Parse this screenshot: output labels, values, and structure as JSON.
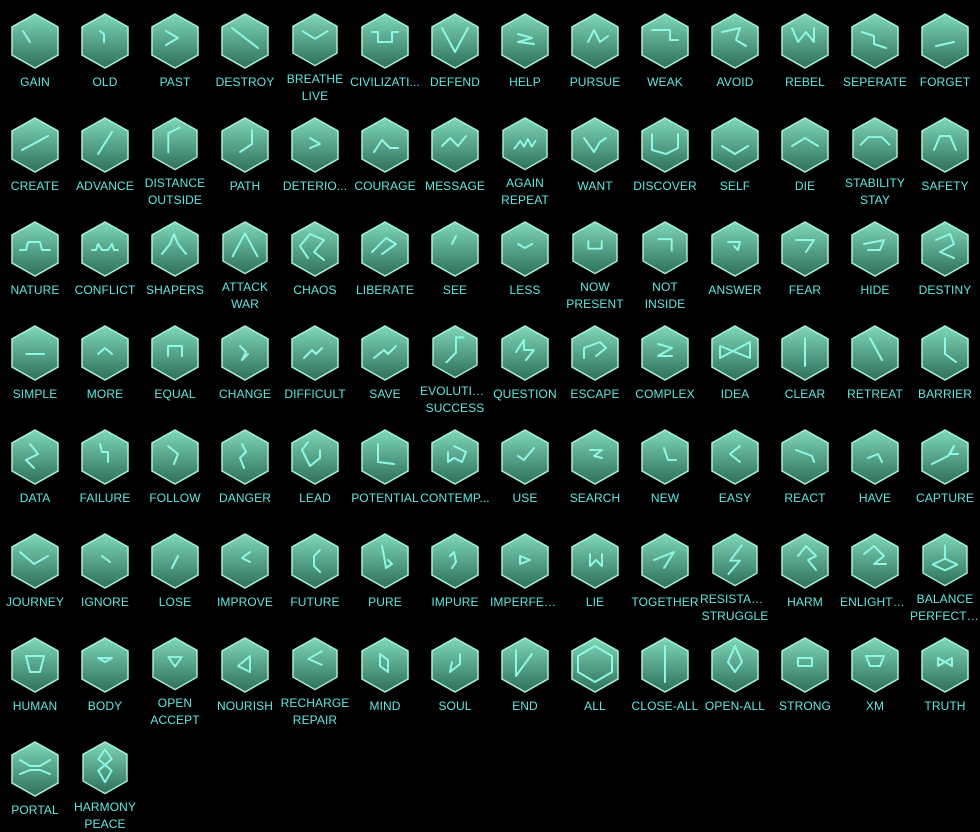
{
  "colors": {
    "background": "#000000",
    "hex_fill_top": "#7fd8b8",
    "hex_fill_bottom": "#2e6f5b",
    "hex_stroke": "#a8f2d8",
    "glyph": "#8ff7e6",
    "label": "#5fe8e3"
  },
  "glyphs": [
    {
      "lines": [
        "GAIN"
      ],
      "name": "gain"
    },
    {
      "lines": [
        "OLD"
      ],
      "name": "old"
    },
    {
      "lines": [
        "PAST"
      ],
      "name": "past"
    },
    {
      "lines": [
        "DESTROY"
      ],
      "name": "destroy"
    },
    {
      "lines": [
        "BREATHE",
        "LIVE"
      ],
      "name": "breathe-live"
    },
    {
      "lines": [
        "CIVILIZATI..."
      ],
      "name": "civilization"
    },
    {
      "lines": [
        "DEFEND"
      ],
      "name": "defend"
    },
    {
      "lines": [
        "HELP"
      ],
      "name": "help"
    },
    {
      "lines": [
        "PURSUE"
      ],
      "name": "pursue"
    },
    {
      "lines": [
        "WEAK"
      ],
      "name": "weak"
    },
    {
      "lines": [
        "AVOID"
      ],
      "name": "avoid"
    },
    {
      "lines": [
        "REBEL"
      ],
      "name": "rebel"
    },
    {
      "lines": [
        "SEPERATE"
      ],
      "name": "seperate"
    },
    {
      "lines": [
        "FORGET"
      ],
      "name": "forget"
    },
    {
      "lines": [
        "CREATE"
      ],
      "name": "create"
    },
    {
      "lines": [
        "ADVANCE"
      ],
      "name": "advance"
    },
    {
      "lines": [
        "DISTANCE",
        "OUTSIDE"
      ],
      "name": "distance-outside"
    },
    {
      "lines": [
        "PATH"
      ],
      "name": "path"
    },
    {
      "lines": [
        "DETERIO..."
      ],
      "name": "deteriorate"
    },
    {
      "lines": [
        "COURAGE"
      ],
      "name": "courage"
    },
    {
      "lines": [
        "MESSAGE"
      ],
      "name": "message"
    },
    {
      "lines": [
        "AGAIN",
        "REPEAT"
      ],
      "name": "again-repeat"
    },
    {
      "lines": [
        "WANT"
      ],
      "name": "want"
    },
    {
      "lines": [
        "DISCOVER"
      ],
      "name": "discover"
    },
    {
      "lines": [
        "SELF"
      ],
      "name": "self"
    },
    {
      "lines": [
        "DIE"
      ],
      "name": "die"
    },
    {
      "lines": [
        "STABILITY",
        "STAY"
      ],
      "name": "stability-stay"
    },
    {
      "lines": [
        "SAFETY"
      ],
      "name": "safety"
    },
    {
      "lines": [
        "NATURE"
      ],
      "name": "nature"
    },
    {
      "lines": [
        "CONFLICT"
      ],
      "name": "conflict"
    },
    {
      "lines": [
        "SHAPERS"
      ],
      "name": "shapers"
    },
    {
      "lines": [
        "ATTACK",
        "WAR"
      ],
      "name": "attack-war"
    },
    {
      "lines": [
        "CHAOS"
      ],
      "name": "chaos"
    },
    {
      "lines": [
        "LIBERATE"
      ],
      "name": "liberate"
    },
    {
      "lines": [
        "SEE"
      ],
      "name": "see"
    },
    {
      "lines": [
        "LESS"
      ],
      "name": "less"
    },
    {
      "lines": [
        "NOW",
        "PRESENT"
      ],
      "name": "now-present"
    },
    {
      "lines": [
        "NOT",
        "INSIDE"
      ],
      "name": "not-inside"
    },
    {
      "lines": [
        "ANSWER"
      ],
      "name": "answer"
    },
    {
      "lines": [
        "FEAR"
      ],
      "name": "fear"
    },
    {
      "lines": [
        "HIDE"
      ],
      "name": "hide"
    },
    {
      "lines": [
        "DESTINY"
      ],
      "name": "destiny"
    },
    {
      "lines": [
        "SIMPLE"
      ],
      "name": "simple"
    },
    {
      "lines": [
        "MORE"
      ],
      "name": "more"
    },
    {
      "lines": [
        "EQUAL"
      ],
      "name": "equal"
    },
    {
      "lines": [
        "CHANGE"
      ],
      "name": "change"
    },
    {
      "lines": [
        "DIFFICULT"
      ],
      "name": "difficult"
    },
    {
      "lines": [
        "SAVE"
      ],
      "name": "save"
    },
    {
      "lines": [
        "EVOLUTION",
        "SUCCESS"
      ],
      "name": "evolution-success"
    },
    {
      "lines": [
        "QUESTION"
      ],
      "name": "question"
    },
    {
      "lines": [
        "ESCAPE"
      ],
      "name": "escape"
    },
    {
      "lines": [
        "COMPLEX"
      ],
      "name": "complex"
    },
    {
      "lines": [
        "IDEA"
      ],
      "name": "idea"
    },
    {
      "lines": [
        "CLEAR"
      ],
      "name": "clear"
    },
    {
      "lines": [
        "RETREAT"
      ],
      "name": "retreat"
    },
    {
      "lines": [
        "BARRIER"
      ],
      "name": "barrier"
    },
    {
      "lines": [
        "DATA"
      ],
      "name": "data"
    },
    {
      "lines": [
        "FAILURE"
      ],
      "name": "failure"
    },
    {
      "lines": [
        "FOLLOW"
      ],
      "name": "follow"
    },
    {
      "lines": [
        "DANGER"
      ],
      "name": "danger"
    },
    {
      "lines": [
        "LEAD"
      ],
      "name": "lead"
    },
    {
      "lines": [
        "POTENTIAL"
      ],
      "name": "potential"
    },
    {
      "lines": [
        "CONTEMP..."
      ],
      "name": "contemplate"
    },
    {
      "lines": [
        "USE"
      ],
      "name": "use"
    },
    {
      "lines": [
        "SEARCH"
      ],
      "name": "search"
    },
    {
      "lines": [
        "NEW"
      ],
      "name": "new"
    },
    {
      "lines": [
        "EASY"
      ],
      "name": "easy"
    },
    {
      "lines": [
        "REACT"
      ],
      "name": "react"
    },
    {
      "lines": [
        "HAVE"
      ],
      "name": "have"
    },
    {
      "lines": [
        "CAPTURE"
      ],
      "name": "capture"
    },
    {
      "lines": [
        "JOURNEY"
      ],
      "name": "journey"
    },
    {
      "lines": [
        "IGNORE"
      ],
      "name": "ignore"
    },
    {
      "lines": [
        "LOSE"
      ],
      "name": "lose"
    },
    {
      "lines": [
        "IMPROVE"
      ],
      "name": "improve"
    },
    {
      "lines": [
        "FUTURE"
      ],
      "name": "future"
    },
    {
      "lines": [
        "PURE"
      ],
      "name": "pure"
    },
    {
      "lines": [
        "IMPURE"
      ],
      "name": "impure"
    },
    {
      "lines": [
        "IMPERFECT"
      ],
      "name": "imperfect"
    },
    {
      "lines": [
        "LIE"
      ],
      "name": "lie"
    },
    {
      "lines": [
        "TOGETHER"
      ],
      "name": "together"
    },
    {
      "lines": [
        "RESISTAN...",
        "STRUGGLE"
      ],
      "name": "resistance-struggle"
    },
    {
      "lines": [
        "HARM"
      ],
      "name": "harm"
    },
    {
      "lines": [
        "ENLIGHTE..."
      ],
      "name": "enlightenment"
    },
    {
      "lines": [
        "BALANCE",
        "PERFECTI..."
      ],
      "name": "balance-perfection"
    },
    {
      "lines": [
        "HUMAN"
      ],
      "name": "human"
    },
    {
      "lines": [
        "BODY"
      ],
      "name": "body"
    },
    {
      "lines": [
        "OPEN",
        "ACCEPT"
      ],
      "name": "open-accept"
    },
    {
      "lines": [
        "NOURISH"
      ],
      "name": "nourish"
    },
    {
      "lines": [
        "RECHARGE",
        "REPAIR"
      ],
      "name": "recharge-repair"
    },
    {
      "lines": [
        "MIND"
      ],
      "name": "mind"
    },
    {
      "lines": [
        "SOUL"
      ],
      "name": "soul"
    },
    {
      "lines": [
        "END"
      ],
      "name": "end"
    },
    {
      "lines": [
        "ALL"
      ],
      "name": "all"
    },
    {
      "lines": [
        "CLOSE-ALL"
      ],
      "name": "close-all"
    },
    {
      "lines": [
        "OPEN-ALL"
      ],
      "name": "open-all"
    },
    {
      "lines": [
        "STRONG"
      ],
      "name": "strong"
    },
    {
      "lines": [
        "XM"
      ],
      "name": "xm"
    },
    {
      "lines": [
        "TRUTH"
      ],
      "name": "truth"
    },
    {
      "lines": [
        "PORTAL"
      ],
      "name": "portal"
    },
    {
      "lines": [
        "HARMONY",
        "PEACE"
      ],
      "name": "harmony-peace"
    }
  ]
}
